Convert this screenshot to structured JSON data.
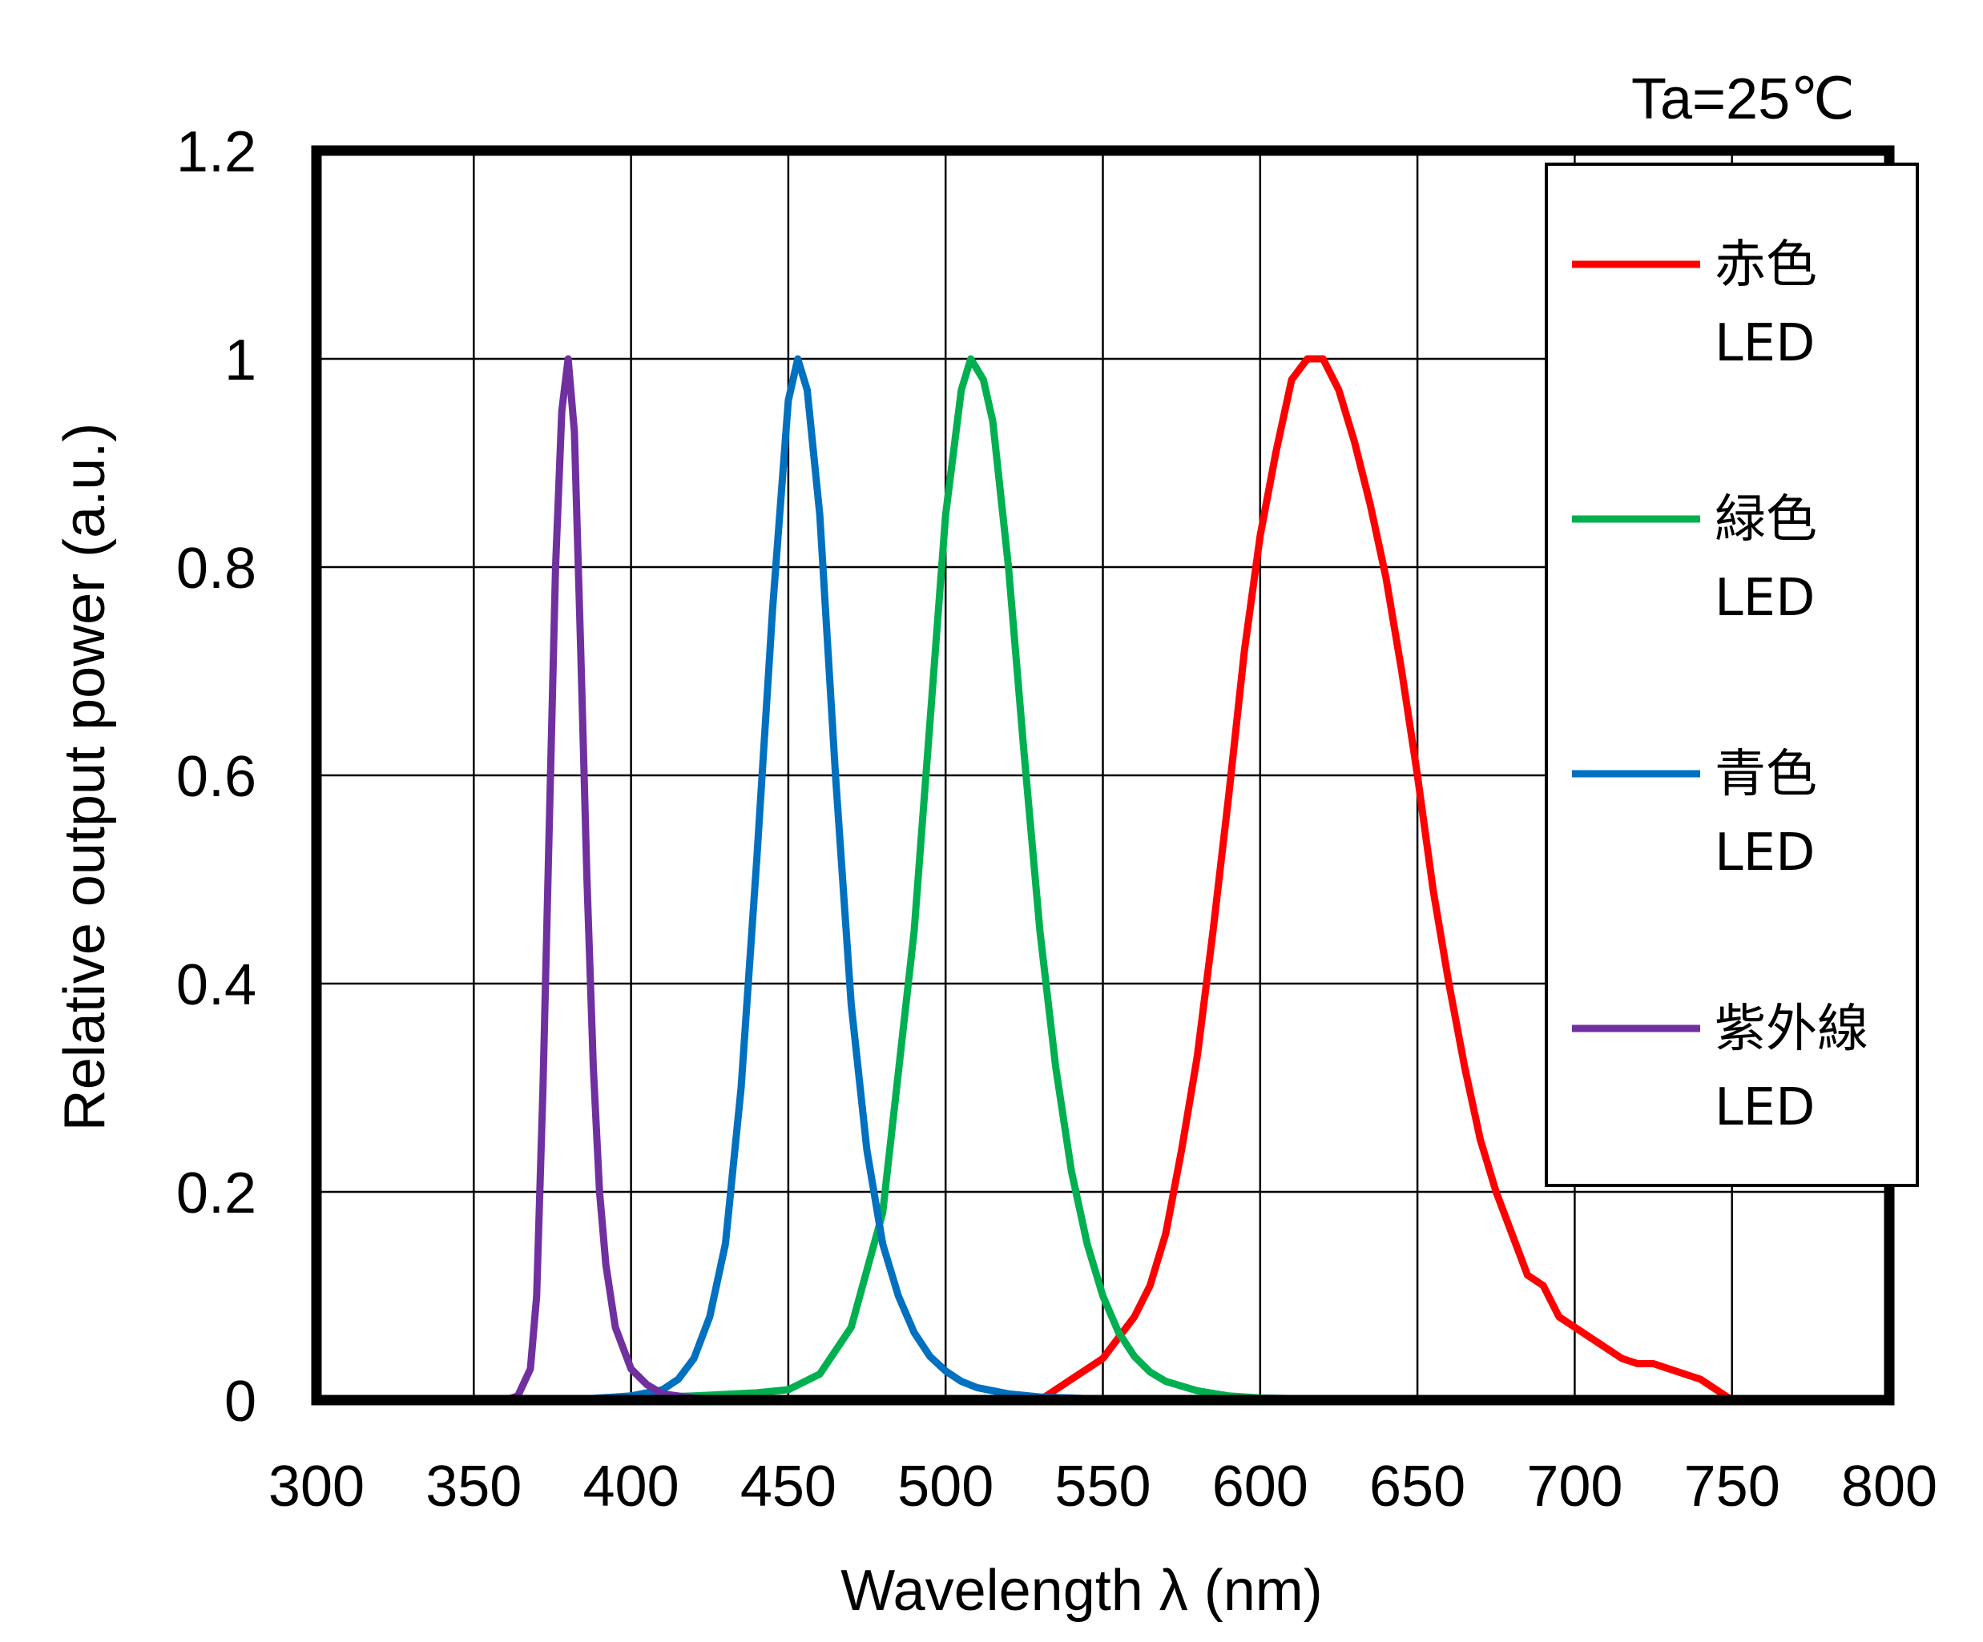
{
  "chart_data": {
    "type": "line",
    "title": "",
    "annotation": "Ta=25℃",
    "xlabel": "Wavelength λ (nm)",
    "ylabel": "Relative output power (a.u.)",
    "xlim": [
      300,
      800
    ],
    "ylim": [
      0,
      1.2
    ],
    "x_ticks": [
      "300",
      "350",
      "400",
      "450",
      "500",
      "550",
      "600",
      "650",
      "700",
      "750",
      "800"
    ],
    "y_ticks": [
      "0",
      "0.2",
      "0.4",
      "0.6",
      "0.8",
      "1",
      "1.2"
    ],
    "grid": true,
    "legend_position": "top-right",
    "series": [
      {
        "name": "赤色",
        "name_line2": "LED",
        "color": "#ff0000",
        "points": [
          [
            300,
            0
          ],
          [
            530,
            0
          ],
          [
            535,
            0.01
          ],
          [
            540,
            0.02
          ],
          [
            545,
            0.03
          ],
          [
            550,
            0.04
          ],
          [
            555,
            0.06
          ],
          [
            560,
            0.08
          ],
          [
            565,
            0.11
          ],
          [
            570,
            0.16
          ],
          [
            575,
            0.24
          ],
          [
            580,
            0.33
          ],
          [
            585,
            0.45
          ],
          [
            590,
            0.58
          ],
          [
            595,
            0.72
          ],
          [
            600,
            0.83
          ],
          [
            605,
            0.91
          ],
          [
            610,
            0.98
          ],
          [
            615,
            1.0
          ],
          [
            620,
            1.0
          ],
          [
            625,
            0.97
          ],
          [
            630,
            0.92
          ],
          [
            635,
            0.86
          ],
          [
            640,
            0.79
          ],
          [
            645,
            0.7
          ],
          [
            650,
            0.6
          ],
          [
            655,
            0.49
          ],
          [
            660,
            0.4
          ],
          [
            665,
            0.32
          ],
          [
            670,
            0.25
          ],
          [
            675,
            0.2
          ],
          [
            680,
            0.16
          ],
          [
            685,
            0.12
          ],
          [
            690,
            0.11
          ],
          [
            695,
            0.08
          ],
          [
            700,
            0.07
          ],
          [
            705,
            0.06
          ],
          [
            710,
            0.05
          ],
          [
            715,
            0.04
          ],
          [
            720,
            0.035
          ],
          [
            725,
            0.035
          ],
          [
            730,
            0.03
          ],
          [
            735,
            0.025
          ],
          [
            740,
            0.02
          ],
          [
            745,
            0.01
          ],
          [
            750,
            0
          ],
          [
            800,
            0
          ]
        ]
      },
      {
        "name": "緑色",
        "name_line2": "LED",
        "color": "#00b050",
        "points": [
          [
            300,
            0
          ],
          [
            380,
            0
          ],
          [
            420,
            0.004
          ],
          [
            440,
            0.007
          ],
          [
            450,
            0.01
          ],
          [
            460,
            0.025
          ],
          [
            470,
            0.07
          ],
          [
            480,
            0.18
          ],
          [
            490,
            0.45
          ],
          [
            495,
            0.65
          ],
          [
            500,
            0.85
          ],
          [
            505,
            0.97
          ],
          [
            508,
            1.0
          ],
          [
            512,
            0.98
          ],
          [
            515,
            0.94
          ],
          [
            520,
            0.8
          ],
          [
            525,
            0.62
          ],
          [
            530,
            0.45
          ],
          [
            535,
            0.32
          ],
          [
            540,
            0.22
          ],
          [
            545,
            0.15
          ],
          [
            550,
            0.1
          ],
          [
            555,
            0.065
          ],
          [
            560,
            0.042
          ],
          [
            565,
            0.027
          ],
          [
            570,
            0.018
          ],
          [
            580,
            0.009
          ],
          [
            590,
            0.004
          ],
          [
            600,
            0.002
          ],
          [
            620,
            0.001
          ],
          [
            800,
            0
          ]
        ]
      },
      {
        "name": "青色",
        "name_line2": "LED",
        "color": "#0070c0",
        "points": [
          [
            300,
            0
          ],
          [
            380,
            0
          ],
          [
            400,
            0.004
          ],
          [
            410,
            0.01
          ],
          [
            415,
            0.02
          ],
          [
            420,
            0.04
          ],
          [
            425,
            0.08
          ],
          [
            430,
            0.15
          ],
          [
            435,
            0.3
          ],
          [
            440,
            0.52
          ],
          [
            445,
            0.76
          ],
          [
            450,
            0.96
          ],
          [
            453,
            1.0
          ],
          [
            456,
            0.97
          ],
          [
            460,
            0.85
          ],
          [
            465,
            0.6
          ],
          [
            470,
            0.38
          ],
          [
            475,
            0.24
          ],
          [
            480,
            0.15
          ],
          [
            485,
            0.1
          ],
          [
            490,
            0.065
          ],
          [
            495,
            0.042
          ],
          [
            500,
            0.028
          ],
          [
            505,
            0.018
          ],
          [
            510,
            0.012
          ],
          [
            520,
            0.006
          ],
          [
            530,
            0.003
          ],
          [
            550,
            0.001
          ],
          [
            800,
            0
          ]
        ]
      },
      {
        "name": "紫外線",
        "name_line2": "LED",
        "color": "#7030a0",
        "points": [
          [
            300,
            0
          ],
          [
            360,
            0
          ],
          [
            364,
            0.004
          ],
          [
            368,
            0.03
          ],
          [
            370,
            0.1
          ],
          [
            372,
            0.3
          ],
          [
            374,
            0.55
          ],
          [
            376,
            0.8
          ],
          [
            378,
            0.95
          ],
          [
            380,
            1.0
          ],
          [
            382,
            0.93
          ],
          [
            384,
            0.72
          ],
          [
            386,
            0.5
          ],
          [
            388,
            0.32
          ],
          [
            390,
            0.2
          ],
          [
            392,
            0.13
          ],
          [
            395,
            0.07
          ],
          [
            400,
            0.03
          ],
          [
            405,
            0.015
          ],
          [
            410,
            0.006
          ],
          [
            420,
            0.002
          ],
          [
            440,
            0
          ],
          [
            800,
            0
          ]
        ]
      }
    ]
  }
}
